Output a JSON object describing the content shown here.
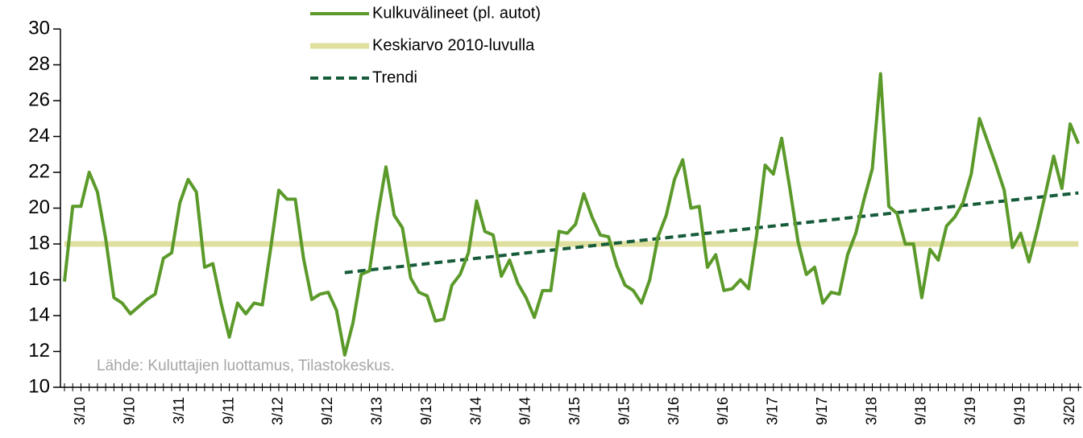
{
  "chart_data": {
    "type": "line",
    "source": "Lähde: Kuluttajien luottamus, Tilastokeskus.",
    "categories": [
      null,
      null,
      "3/10",
      null,
      null,
      null,
      null,
      null,
      "9/10",
      null,
      null,
      null,
      null,
      null,
      "3/11",
      null,
      null,
      null,
      null,
      null,
      "9/11",
      null,
      null,
      null,
      null,
      null,
      "3/12",
      null,
      null,
      null,
      null,
      null,
      "9/12",
      null,
      null,
      null,
      null,
      null,
      "3/13",
      null,
      null,
      null,
      null,
      null,
      "9/13",
      null,
      null,
      null,
      null,
      null,
      "3/14",
      null,
      null,
      null,
      null,
      null,
      "9/14",
      null,
      null,
      null,
      null,
      null,
      "3/15",
      null,
      null,
      null,
      null,
      null,
      "9/15",
      null,
      null,
      null,
      null,
      null,
      "3/16",
      null,
      null,
      null,
      null,
      null,
      "9/16",
      null,
      null,
      null,
      null,
      null,
      "3/17",
      null,
      null,
      null,
      null,
      null,
      "9/17",
      null,
      null,
      null,
      null,
      null,
      "3/18",
      null,
      null,
      null,
      null,
      null,
      "9/18",
      null,
      null,
      null,
      null,
      null,
      "3/19",
      null,
      null,
      null,
      null,
      null,
      "9/19",
      null,
      null,
      null,
      null,
      null,
      "3/20",
      null
    ],
    "series": [
      {
        "name": "Kulkuvälineet (pl. autot)",
        "color": "#5b9a2a",
        "line_style": "solid",
        "values": [
          15.9,
          20.1,
          20.1,
          22.0,
          20.9,
          18.3,
          15.0,
          14.7,
          14.1,
          14.5,
          14.9,
          15.2,
          17.2,
          17.5,
          20.3,
          21.6,
          20.9,
          16.7,
          16.9,
          14.7,
          12.8,
          14.7,
          14.1,
          14.7,
          14.6,
          17.7,
          21.0,
          20.5,
          20.5,
          17.2,
          14.9,
          15.2,
          15.3,
          14.3,
          11.8,
          13.6,
          16.3,
          16.5,
          19.6,
          22.3,
          19.6,
          18.9,
          16.1,
          15.3,
          15.1,
          13.7,
          13.8,
          15.7,
          16.3,
          17.5,
          20.4,
          18.7,
          18.5,
          16.2,
          17.1,
          15.8,
          15.0,
          13.9,
          15.4,
          15.4,
          18.7,
          18.6,
          19.1,
          20.8,
          19.5,
          18.5,
          18.4,
          16.8,
          15.7,
          15.4,
          14.7,
          16.0,
          18.4,
          19.6,
          21.6,
          22.7,
          20.0,
          20.1,
          16.7,
          17.4,
          15.4,
          15.5,
          16.0,
          15.5,
          18.6,
          22.4,
          21.9,
          23.9,
          21.1,
          18.1,
          16.3,
          16.7,
          14.7,
          15.3,
          15.2,
          17.4,
          18.6,
          20.5,
          22.2,
          27.5,
          20.1,
          19.7,
          18.0,
          18.0,
          15.0,
          17.7,
          17.1,
          19.0,
          19.5,
          20.3,
          21.9,
          25.0,
          23.7,
          22.4,
          21.0,
          17.8,
          18.6,
          17.0,
          18.8,
          20.8,
          22.9,
          21.1,
          24.7,
          23.6
        ]
      },
      {
        "name": "Keskiarvo 2010-luvulla",
        "color": "#dfdf9f",
        "line_style": "solid",
        "values": [
          18,
          18,
          18,
          18,
          18,
          18,
          18,
          18,
          18,
          18,
          18,
          18,
          18,
          18,
          18,
          18,
          18,
          18,
          18,
          18,
          18,
          18,
          18,
          18,
          18,
          18,
          18,
          18,
          18,
          18,
          18,
          18,
          18,
          18,
          18,
          18,
          18,
          18,
          18,
          18,
          18,
          18,
          18,
          18,
          18,
          18,
          18,
          18,
          18,
          18,
          18,
          18,
          18,
          18,
          18,
          18,
          18,
          18,
          18,
          18,
          18,
          18,
          18,
          18,
          18,
          18,
          18,
          18,
          18,
          18,
          18,
          18,
          18,
          18,
          18,
          18,
          18,
          18,
          18,
          18,
          18,
          18,
          18,
          18,
          18,
          18,
          18,
          18,
          18,
          18,
          18,
          18,
          18,
          18,
          18,
          18,
          18,
          18,
          18,
          18,
          18,
          18,
          18,
          18,
          18,
          18,
          18,
          18,
          18,
          18,
          18,
          18,
          18,
          18,
          18,
          18,
          18,
          18,
          18,
          18,
          18,
          18,
          18,
          18
        ]
      },
      {
        "name": "Trendi",
        "color": "#175c3a",
        "line_style": "dashed",
        "values": [
          null,
          null,
          null,
          null,
          null,
          null,
          null,
          null,
          null,
          null,
          null,
          null,
          null,
          null,
          null,
          null,
          null,
          null,
          null,
          null,
          null,
          null,
          null,
          null,
          null,
          null,
          null,
          null,
          null,
          null,
          null,
          null,
          null,
          null,
          16.4,
          16.45,
          16.5,
          16.55,
          16.6,
          16.65,
          16.7,
          16.75,
          16.8,
          16.85,
          16.9,
          16.95,
          17.0,
          17.05,
          17.1,
          17.15,
          17.2,
          17.25,
          17.3,
          17.35,
          17.4,
          17.45,
          17.5,
          17.55,
          17.6,
          17.65,
          17.7,
          17.75,
          17.8,
          17.85,
          17.9,
          17.95,
          18.0,
          18.05,
          18.1,
          18.15,
          18.2,
          18.25,
          18.3,
          18.35,
          18.4,
          18.45,
          18.5,
          18.55,
          18.6,
          18.65,
          18.7,
          18.75,
          18.8,
          18.85,
          18.9,
          18.95,
          19.0,
          19.05,
          19.1,
          19.15,
          19.2,
          19.25,
          19.3,
          19.35,
          19.4,
          19.45,
          19.5,
          19.55,
          19.6,
          19.65,
          19.7,
          19.75,
          19.8,
          19.85,
          19.9,
          19.95,
          20.0,
          20.05,
          20.1,
          20.15,
          20.2,
          20.25,
          20.3,
          20.35,
          20.4,
          20.45,
          20.5,
          20.55,
          20.6,
          20.65,
          20.7,
          20.75,
          20.8,
          20.85
        ]
      }
    ],
    "ylim": [
      10,
      30
    ],
    "yticks": [
      10,
      12,
      14,
      16,
      18,
      20,
      22,
      24,
      26,
      28,
      30
    ],
    "grid": false
  }
}
